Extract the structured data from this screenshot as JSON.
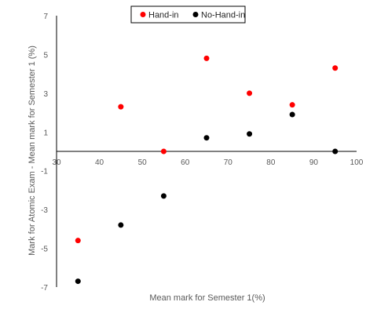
{
  "chart_data": {
    "type": "scatter",
    "title": "",
    "xlabel": "Mean mark for Semester 1(%)",
    "ylabel": "Mark for Atomic Exam - Mean mark for Semester  1 (%)",
    "xlim": [
      30,
      100
    ],
    "ylim": [
      -7,
      7
    ],
    "x_ticks": [
      30,
      40,
      50,
      60,
      70,
      80,
      90,
      100
    ],
    "y_ticks": [
      -7,
      -5,
      -3,
      -1,
      1,
      3,
      5,
      7
    ],
    "grid": false,
    "legend_position": "top",
    "series": [
      {
        "name": "Hand-in",
        "color": "#ff0000",
        "points": [
          {
            "x": 35,
            "y": -4.6
          },
          {
            "x": 45,
            "y": 2.3
          },
          {
            "x": 55,
            "y": 0.0
          },
          {
            "x": 65,
            "y": 4.8
          },
          {
            "x": 75,
            "y": 3.0
          },
          {
            "x": 85,
            "y": 2.4
          },
          {
            "x": 95,
            "y": 4.3
          }
        ]
      },
      {
        "name": "No-Hand-in",
        "color": "#000000",
        "points": [
          {
            "x": 35,
            "y": -6.7
          },
          {
            "x": 45,
            "y": -3.8
          },
          {
            "x": 55,
            "y": -2.3
          },
          {
            "x": 65,
            "y": 0.7
          },
          {
            "x": 75,
            "y": 0.9
          },
          {
            "x": 85,
            "y": 1.9
          },
          {
            "x": 95,
            "y": 0.0
          }
        ]
      }
    ]
  }
}
